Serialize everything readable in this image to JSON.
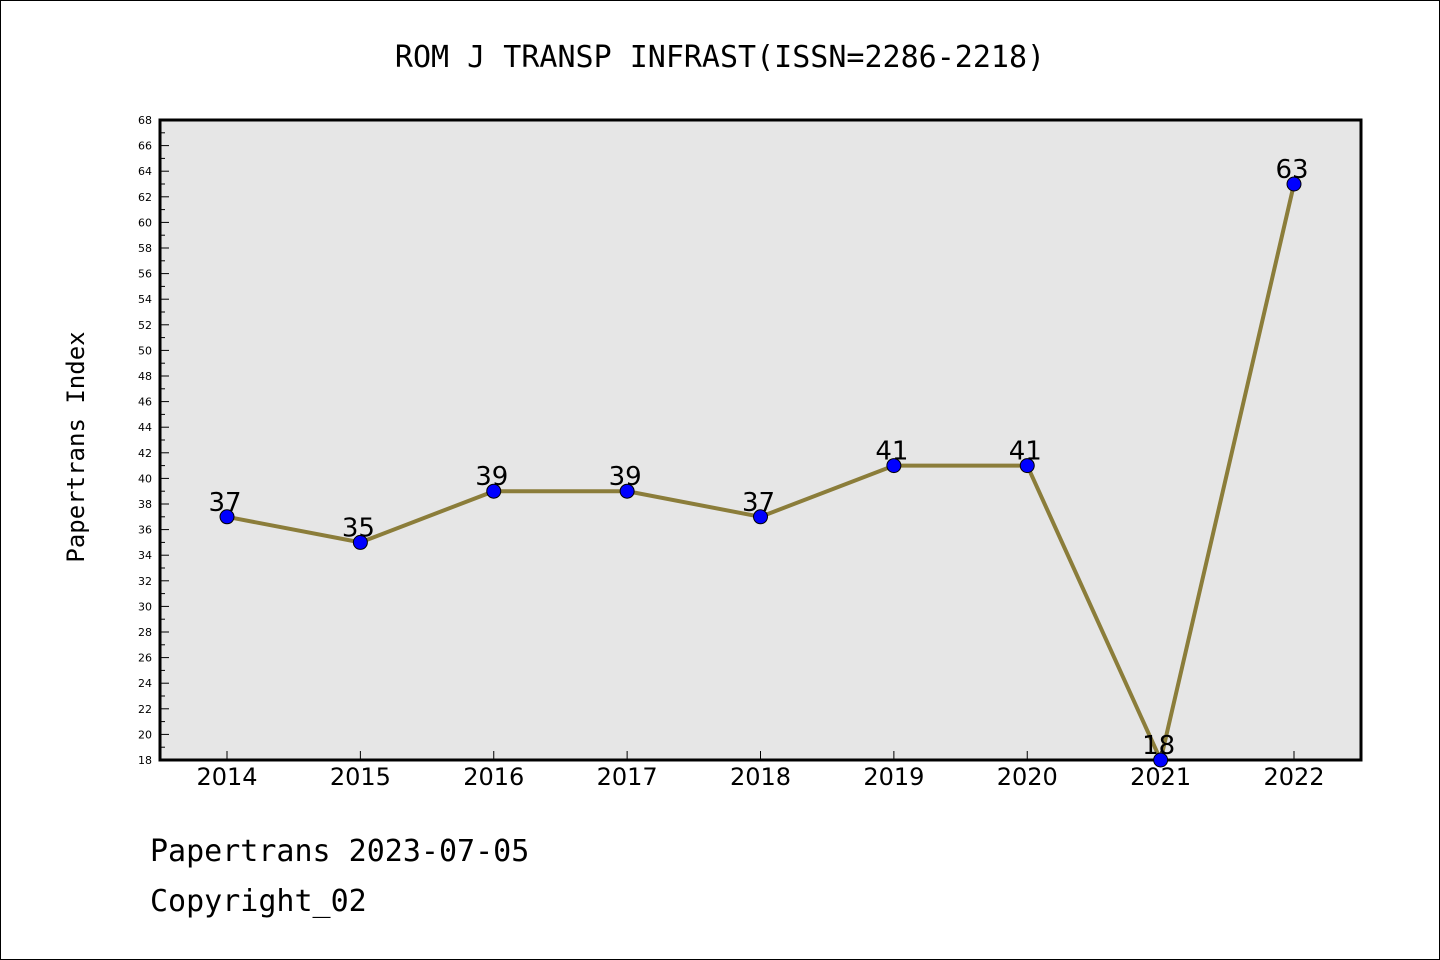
{
  "chart_data": {
    "type": "line",
    "title": "ROM J TRANSP INFRAST(ISSN=2286-2218)",
    "ylabel": "Papertrans Index",
    "xlabel": "",
    "categories": [
      "2014",
      "2015",
      "2016",
      "2017",
      "2018",
      "2019",
      "2020",
      "2021",
      "2022"
    ],
    "values": [
      37,
      35,
      39,
      39,
      37,
      41,
      41,
      18,
      63
    ],
    "ylim": [
      18,
      68
    ],
    "ytick_step": 2,
    "grid": false,
    "legend": "none",
    "colors": {
      "line": "#8B7D3A",
      "marker": "#0000FF",
      "plot_bg": "#E6E6E6"
    }
  },
  "footer": {
    "line1": "Papertrans 2023-07-05",
    "line2": "Copyright_02"
  }
}
